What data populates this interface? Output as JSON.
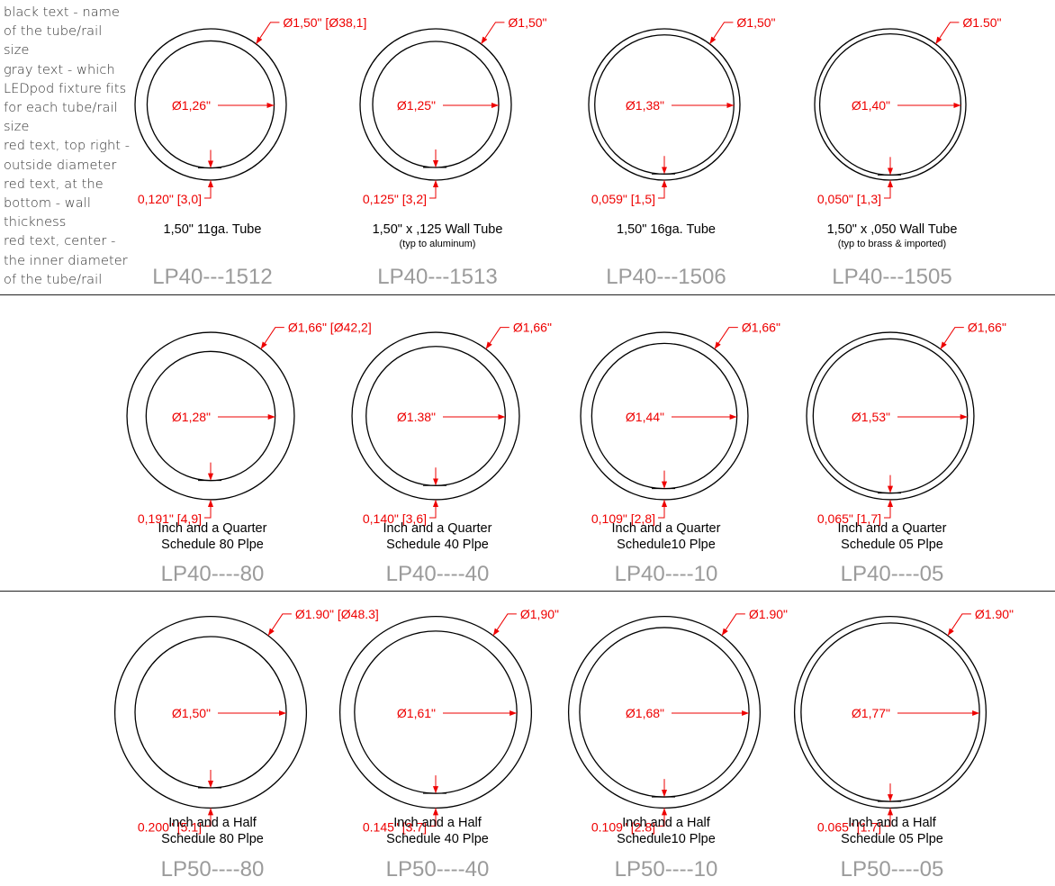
{
  "colors": {
    "dimension": "#ee0000",
    "part": "#9b9b9b",
    "ink": "#000000",
    "legend": "#333333"
  },
  "legend": {
    "lines": [
      "black text - name",
      "of the tube/rail",
      "size",
      "gray text - which",
      "LEDpod fixture fits",
      "for each tube/rail",
      "size",
      "red text, top right -",
      "outside diameter",
      "red text, at the",
      "bottom - wall",
      "thickness",
      "red text, center -",
      "the inner diameter",
      "of the tube/rail"
    ]
  },
  "rows": [
    {
      "items": [
        {
          "outer": "Ø1,50\" [Ø38,1]",
          "inner": "Ø1,26\"",
          "wall": "0,120\" [3,0]",
          "name": [
            "1,50\"  11ga. Tube"
          ],
          "note": "",
          "part": "LP40---1512",
          "od_in": 1.5,
          "id_in": 1.26
        },
        {
          "outer": "Ø1,50\"",
          "inner": "Ø1,25\"",
          "wall": "0,125\" [3,2]",
          "name": [
            "1,50\" x ,125 Wall Tube"
          ],
          "note": "(typ to aluminum)",
          "part": "LP40---1513",
          "od_in": 1.5,
          "id_in": 1.25
        },
        {
          "outer": "Ø1,50\"",
          "inner": "Ø1,38\"",
          "wall": "0,059\" [1,5]",
          "name": [
            "1,50\"  16ga. Tube"
          ],
          "note": "",
          "part": "LP40---1506",
          "od_in": 1.5,
          "id_in": 1.38
        },
        {
          "outer": "Ø1.50\"",
          "inner": "Ø1,40\"",
          "wall": "0,050\" [1,3]",
          "name": [
            "1,50\" x ,050 Wall Tube"
          ],
          "note": "(typ to brass & imported)",
          "part": "LP40---1505",
          "od_in": 1.5,
          "id_in": 1.4
        }
      ]
    },
    {
      "items": [
        {
          "outer": "Ø1,66\" [Ø42,2]",
          "inner": "Ø1,28\"",
          "wall": "0,191\" [4,9]",
          "name": [
            "Inch and a Quarter",
            "Schedule 80  Plpe"
          ],
          "note": "",
          "part": "LP40----80",
          "od_in": 1.66,
          "id_in": 1.28
        },
        {
          "outer": "Ø1,66\"",
          "inner": "Ø1.38\"",
          "wall": "0,140\" [3,6]",
          "name": [
            "Inch and a Quarter",
            "Schedule 40  Plpe"
          ],
          "note": "",
          "part": "LP40----40",
          "od_in": 1.66,
          "id_in": 1.38
        },
        {
          "outer": "Ø1,66\"",
          "inner": "Ø1,44\"",
          "wall": "0,109\" [2,8]",
          "name": [
            "Inch and a Quarter",
            "Schedule10 Plpe"
          ],
          "note": "",
          "part": "LP40----10",
          "od_in": 1.66,
          "id_in": 1.44
        },
        {
          "outer": "Ø1,66\"",
          "inner": "Ø1,53\"",
          "wall": "0,065\" [1,7]",
          "name": [
            "Inch and a Quarter",
            "Schedule 05  Plpe"
          ],
          "note": "",
          "part": "LP40----05",
          "od_in": 1.66,
          "id_in": 1.53
        }
      ]
    },
    {
      "items": [
        {
          "outer": "Ø1.90\" [Ø48.3]",
          "inner": "Ø1,50\"",
          "wall": "0.200\" [5.1]",
          "name": [
            "Inch and a Half",
            "Schedule 80 Plpe"
          ],
          "note": "",
          "part": "LP50----80",
          "od_in": 1.9,
          "id_in": 1.5
        },
        {
          "outer": "Ø1,90\"",
          "inner": "Ø1,61\"",
          "wall": "0.145\" [3.7]",
          "name": [
            "Inch and a Half",
            "Schedule 40 Plpe"
          ],
          "note": "",
          "part": "LP50----40",
          "od_in": 1.9,
          "id_in": 1.61
        },
        {
          "outer": "Ø1.90\"",
          "inner": "Ø1,68\"",
          "wall": "0.109\" [2.8]",
          "name": [
            "Inch and a Half",
            "Schedule10 Plpe"
          ],
          "note": "",
          "part": "LP50----10",
          "od_in": 1.9,
          "id_in": 1.68
        },
        {
          "outer": "Ø1.90\"",
          "inner": "Ø1,77\"",
          "wall": "0.065\" [1.7]",
          "name": [
            "Inch and a Half",
            "Schedule 05  Plpe"
          ],
          "note": "",
          "part": "LP50----05",
          "od_in": 1.9,
          "id_in": 1.77
        }
      ]
    }
  ]
}
